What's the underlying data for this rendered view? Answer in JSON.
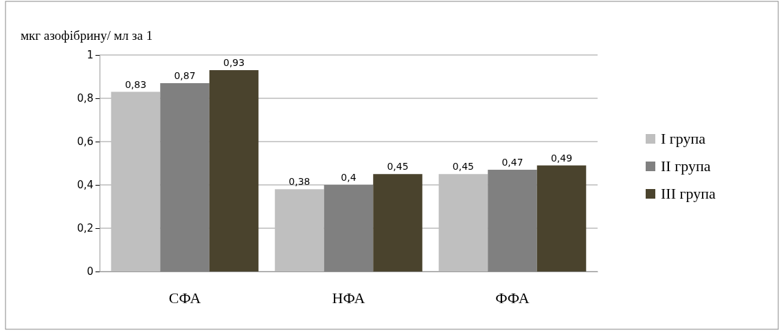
{
  "chart_data": {
    "type": "bar",
    "ylabel": "мкг азофібрину/ мл за 1",
    "categories": [
      "СФА",
      "НФА",
      "ФФА"
    ],
    "series": [
      {
        "name": "I група",
        "color": "#bfbfbf",
        "values": [
          0.83,
          0.38,
          0.45
        ],
        "value_labels": [
          "0,83",
          "0,38",
          "0,45"
        ]
      },
      {
        "name": "II група",
        "color": "#808080",
        "values": [
          0.87,
          0.4,
          0.47
        ],
        "value_labels": [
          "0,87",
          "0,4",
          "0,47"
        ]
      },
      {
        "name": "III група",
        "color": "#4a432d",
        "values": [
          0.93,
          0.45,
          0.49
        ],
        "value_labels": [
          "0,93",
          "0,45",
          "0,49"
        ]
      }
    ],
    "ylim": [
      0,
      1
    ],
    "yticks": [
      {
        "value": 0,
        "label": "0"
      },
      {
        "value": 0.2,
        "label": "0,2"
      },
      {
        "value": 0.4,
        "label": "0,4"
      },
      {
        "value": 0.6,
        "label": "0,6"
      },
      {
        "value": 0.8,
        "label": "0,8"
      },
      {
        "value": 1,
        "label": "1"
      }
    ],
    "grid": "y",
    "legend": "right"
  }
}
